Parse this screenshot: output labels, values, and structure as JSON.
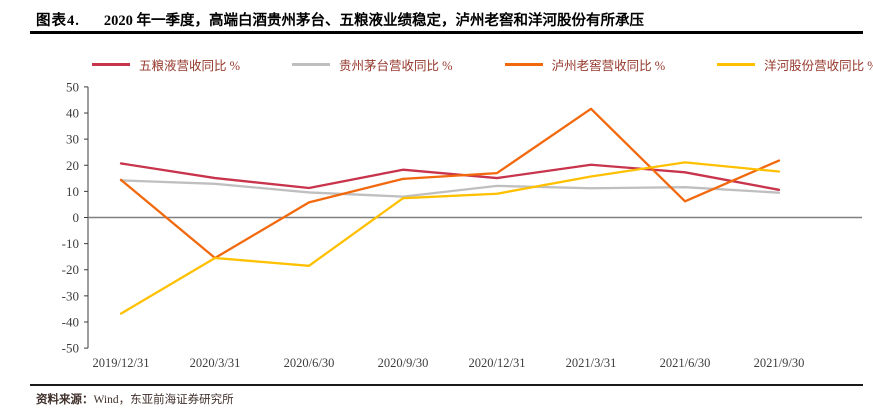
{
  "header": {
    "figure_label": "图表4.",
    "title": "2020 年一季度，高端白酒贵州茅台、五粮液业绩稳定，泸州老窖和洋河股份有所承压"
  },
  "footer": {
    "source_label": "资料来源：",
    "source_text": "Wind，东亚前海证券研究所"
  },
  "chart_data": {
    "type": "line",
    "title": "2020 年一季度，高端白酒贵州茅台、五粮液业绩稳定，泸州老窖和洋河股份有所承压",
    "x_labels": [
      "2019/12/31",
      "2020/3/31",
      "2020/6/30",
      "2020/9/30",
      "2020/12/31",
      "2021/3/31",
      "2021/6/30",
      "2021/9/30"
    ],
    "y_ticks": [
      50,
      40,
      30,
      20,
      10,
      0,
      -10,
      -20,
      -30,
      -40,
      -50
    ],
    "ylim": [
      -50,
      50
    ],
    "xlabel": "",
    "ylabel": "",
    "grid": false,
    "legend_position": "top",
    "zero_line_color": "#808080",
    "axis_color": "#3d3d3d",
    "series": [
      {
        "name": "五粮液营收同比 %",
        "color": "#C8344C",
        "values": [
          20.7,
          15.1,
          11.3,
          18.3,
          15.1,
          20.2,
          17.3,
          10.6
        ]
      },
      {
        "name": "贵州茅台营收同比 %",
        "color": "#BFBFBF",
        "values": [
          14.2,
          12.9,
          9.6,
          8.0,
          12.1,
          11.2,
          11.6,
          9.5
        ]
      },
      {
        "name": "泸州老窖营收同比 %",
        "color": "#F2690D",
        "values": [
          14.4,
          -15.5,
          5.8,
          14.8,
          17.0,
          41.6,
          6.2,
          21.8
        ]
      },
      {
        "name": "洋河股份营收同比 %",
        "color": "#FFC000",
        "values": [
          -36.8,
          -15.5,
          -18.5,
          7.4,
          9.1,
          15.7,
          21.1,
          17.6
        ]
      }
    ]
  }
}
